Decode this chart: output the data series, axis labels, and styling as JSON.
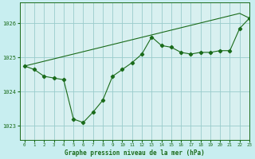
{
  "title": "Graphe pression niveau de la mer (hPa)",
  "background_color": "#c8eef0",
  "plot_bg_color": "#d8f0f0",
  "grid_color": "#99cccc",
  "line_color": "#1a6b1a",
  "xlim": [
    -0.5,
    23
  ],
  "ylim": [
    1022.6,
    1026.6
  ],
  "yticks": [
    1023,
    1024,
    1025,
    1026
  ],
  "xticks": [
    0,
    1,
    2,
    3,
    4,
    5,
    6,
    7,
    8,
    9,
    10,
    11,
    12,
    13,
    14,
    15,
    16,
    17,
    18,
    19,
    20,
    21,
    22,
    23
  ],
  "hours": [
    0,
    1,
    2,
    3,
    4,
    5,
    6,
    7,
    8,
    9,
    10,
    11,
    12,
    13,
    14,
    15,
    16,
    17,
    18,
    19,
    20,
    21,
    22,
    23
  ],
  "pressure_obs": [
    1024.75,
    1024.65,
    1024.45,
    1024.4,
    1024.35,
    1023.2,
    1023.1,
    1023.4,
    1023.75,
    1024.45,
    1024.65,
    1024.85,
    1025.1,
    1025.6,
    1025.35,
    1025.3,
    1025.15,
    1025.1,
    1025.15,
    1025.15,
    1025.2,
    1025.2,
    1025.85,
    1026.15
  ],
  "pressure_trend": [
    1024.75,
    1024.82,
    1024.89,
    1024.96,
    1025.03,
    1025.1,
    1025.17,
    1025.24,
    1025.31,
    1025.38,
    1025.45,
    1025.52,
    1025.59,
    1025.66,
    1025.73,
    1025.8,
    1025.87,
    1025.94,
    1026.01,
    1026.08,
    1026.15,
    1026.22,
    1026.29,
    1026.15
  ]
}
